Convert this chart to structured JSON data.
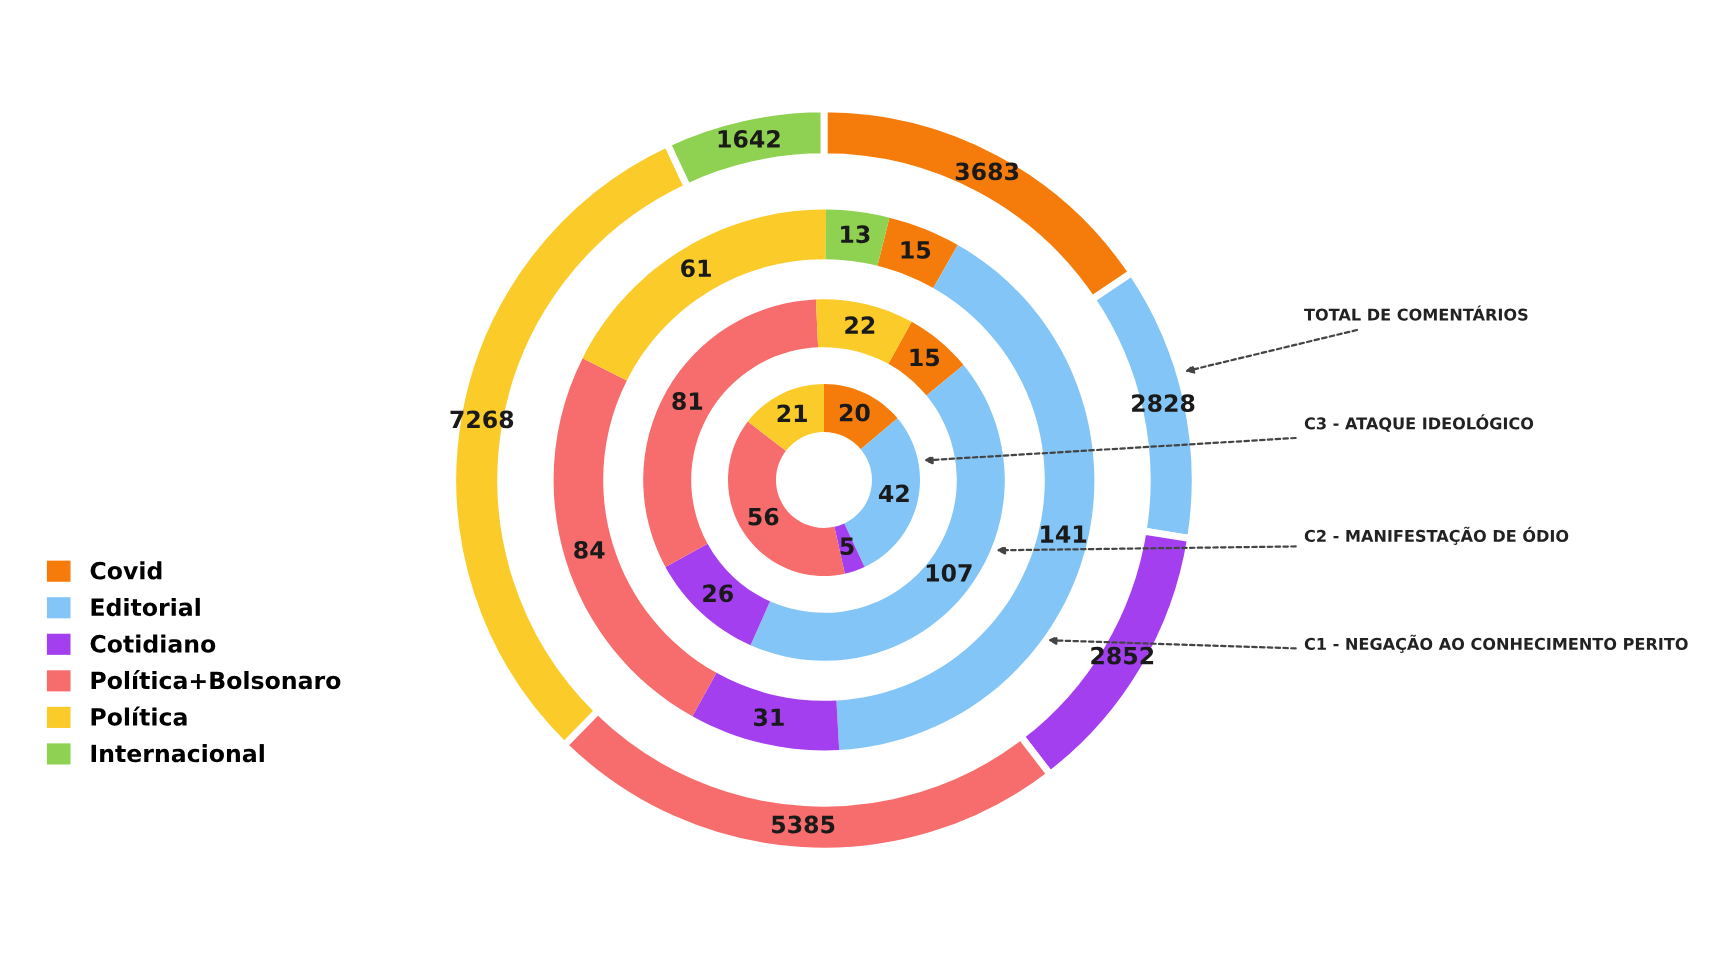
{
  "chart_data": {
    "type": "donut",
    "categories": [
      "Covid",
      "Editorial",
      "Cotidiano",
      "Política+Bolsonaro",
      "Política",
      "Internacional"
    ],
    "colors": [
      "#f57c0a",
      "#84c5f7",
      "#a43ff0",
      "#f76c6c",
      "#fbcb2a",
      "#8fd150"
    ],
    "series": [
      {
        "name": "TOTAL DE COMENTÁRIOS",
        "values": [
          3683,
          2828,
          2852,
          5385,
          7268,
          1642
        ]
      },
      {
        "name": "C3 - ATAQUE IDEOLÓGICO",
        "values": [
          20,
          42,
          5,
          56,
          21,
          null
        ]
      },
      {
        "name": "C2 - MANIFESTAÇÃO DE ÓDIO",
        "values": [
          15,
          107,
          26,
          81,
          22,
          null
        ]
      },
      {
        "name": "C1 - NEGAÇÃO AO CONHECIMENTO PERITO",
        "values": [
          15,
          141,
          31,
          84,
          61,
          13
        ]
      }
    ],
    "data_labels": true,
    "legend": "left"
  }
}
